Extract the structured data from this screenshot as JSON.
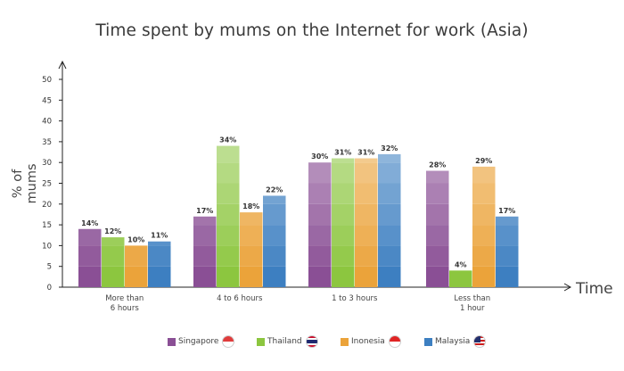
{
  "chart_data": {
    "type": "bar",
    "title": "Time spent by mums on the Internet for work (Asia)",
    "ylabel": "% of mums",
    "xlabel": "Time",
    "ylim": [
      0,
      50
    ],
    "yticks": [
      0,
      5,
      10,
      15,
      20,
      25,
      30,
      35,
      40,
      45,
      50
    ],
    "categories": [
      [
        "More than",
        "6 hours"
      ],
      [
        "4 to 6 hours"
      ],
      [
        "1 to 3 hours"
      ],
      [
        "Less than",
        "1 hour"
      ]
    ],
    "series": [
      {
        "name": "Singapore",
        "values": [
          14,
          17,
          30,
          28
        ],
        "color": "#8a4f95"
      },
      {
        "name": "Thailand",
        "values": [
          12,
          34,
          31,
          4
        ],
        "color": "#8cc63f"
      },
      {
        "name": "Inonesia",
        "values": [
          10,
          18,
          31,
          29
        ],
        "color": "#eba33a"
      },
      {
        "name": "Malaysia",
        "values": [
          11,
          22,
          32,
          17
        ],
        "color": "#3d7fc1"
      }
    ],
    "value_suffix": "%",
    "legend_position": "bottom",
    "grid": false
  },
  "legend": {
    "items": [
      {
        "label": "Singapore",
        "flag": "singapore-flag-icon"
      },
      {
        "label": "Thailand",
        "flag": "thailand-flag-icon"
      },
      {
        "label": "Inonesia",
        "flag": "indonesia-flag-icon"
      },
      {
        "label": "Malaysia",
        "flag": "malaysia-flag-icon"
      }
    ]
  }
}
